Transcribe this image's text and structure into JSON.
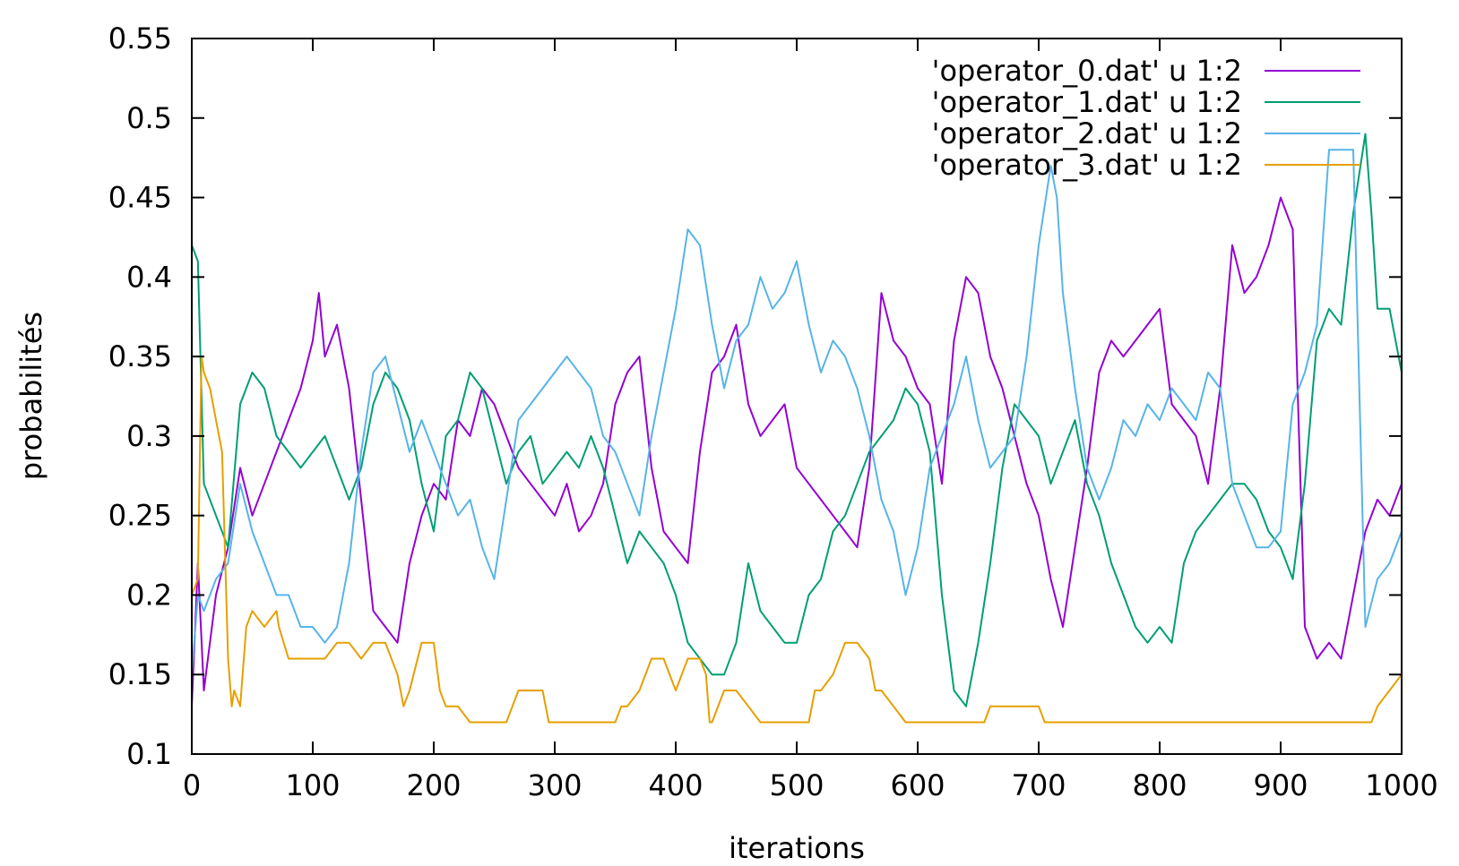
{
  "chart_data": {
    "type": "line",
    "title": "",
    "xlabel": "iterations",
    "ylabel": "probabilités",
    "xlim": [
      0,
      1000
    ],
    "ylim": [
      0.1,
      0.55
    ],
    "xticks": [
      "0",
      "100",
      "200",
      "300",
      "400",
      "500",
      "600",
      "700",
      "800",
      "900",
      "1000"
    ],
    "yticks": [
      "0.1",
      "0.15",
      "0.2",
      "0.25",
      "0.3",
      "0.35",
      "0.4",
      "0.45",
      "0.5",
      "0.55"
    ],
    "grid": false,
    "legend_position": "top-right",
    "series": [
      {
        "name": "'operator_0.dat' u 1:2",
        "color": "#9400d3",
        "x": [
          0,
          5,
          10,
          20,
          30,
          40,
          50,
          60,
          70,
          80,
          90,
          100,
          105,
          110,
          120,
          130,
          140,
          150,
          160,
          170,
          180,
          190,
          200,
          210,
          220,
          230,
          240,
          250,
          260,
          270,
          280,
          290,
          300,
          310,
          320,
          330,
          340,
          350,
          360,
          370,
          380,
          390,
          400,
          410,
          420,
          430,
          440,
          450,
          460,
          470,
          480,
          490,
          500,
          510,
          520,
          530,
          540,
          550,
          560,
          570,
          580,
          590,
          600,
          610,
          620,
          630,
          640,
          650,
          660,
          670,
          680,
          690,
          700,
          710,
          720,
          730,
          740,
          750,
          760,
          770,
          780,
          790,
          800,
          810,
          820,
          830,
          840,
          850,
          860,
          870,
          880,
          890,
          900,
          910,
          920,
          930,
          940,
          950,
          960,
          970,
          980,
          990,
          1000
        ],
        "y": [
          0.13,
          0.22,
          0.14,
          0.2,
          0.23,
          0.28,
          0.25,
          0.27,
          0.29,
          0.31,
          0.33,
          0.36,
          0.39,
          0.35,
          0.37,
          0.33,
          0.26,
          0.19,
          0.18,
          0.17,
          0.22,
          0.25,
          0.27,
          0.26,
          0.31,
          0.3,
          0.33,
          0.32,
          0.3,
          0.28,
          0.27,
          0.26,
          0.25,
          0.27,
          0.24,
          0.25,
          0.27,
          0.32,
          0.34,
          0.35,
          0.28,
          0.24,
          0.23,
          0.22,
          0.29,
          0.34,
          0.35,
          0.37,
          0.32,
          0.3,
          0.31,
          0.32,
          0.28,
          0.27,
          0.26,
          0.25,
          0.24,
          0.23,
          0.28,
          0.39,
          0.36,
          0.35,
          0.33,
          0.32,
          0.27,
          0.36,
          0.4,
          0.39,
          0.35,
          0.33,
          0.3,
          0.27,
          0.25,
          0.21,
          0.18,
          0.23,
          0.28,
          0.34,
          0.36,
          0.35,
          0.36,
          0.37,
          0.38,
          0.32,
          0.31,
          0.3,
          0.27,
          0.33,
          0.42,
          0.39,
          0.4,
          0.42,
          0.45,
          0.43,
          0.18,
          0.16,
          0.17,
          0.16,
          0.2,
          0.24,
          0.26,
          0.25,
          0.27
        ]
      },
      {
        "name": "'operator_1.dat' u 1:2",
        "color": "#009e73",
        "x": [
          0,
          5,
          10,
          20,
          30,
          40,
          50,
          60,
          70,
          80,
          90,
          100,
          110,
          120,
          130,
          140,
          150,
          160,
          170,
          180,
          190,
          200,
          210,
          220,
          230,
          240,
          250,
          260,
          270,
          280,
          290,
          300,
          310,
          320,
          330,
          340,
          350,
          360,
          370,
          380,
          390,
          400,
          410,
          420,
          430,
          440,
          450,
          460,
          470,
          480,
          490,
          500,
          510,
          520,
          530,
          540,
          550,
          560,
          570,
          580,
          590,
          600,
          610,
          620,
          630,
          640,
          650,
          660,
          670,
          680,
          690,
          700,
          710,
          720,
          730,
          740,
          750,
          760,
          770,
          780,
          790,
          800,
          810,
          820,
          830,
          840,
          850,
          860,
          870,
          880,
          890,
          900,
          910,
          920,
          930,
          940,
          950,
          960,
          970,
          975,
          980,
          990,
          1000
        ],
        "y": [
          0.42,
          0.41,
          0.27,
          0.25,
          0.23,
          0.32,
          0.34,
          0.33,
          0.3,
          0.29,
          0.28,
          0.29,
          0.3,
          0.28,
          0.26,
          0.28,
          0.32,
          0.34,
          0.33,
          0.31,
          0.27,
          0.24,
          0.3,
          0.31,
          0.34,
          0.33,
          0.3,
          0.27,
          0.29,
          0.3,
          0.27,
          0.28,
          0.29,
          0.28,
          0.3,
          0.28,
          0.25,
          0.22,
          0.24,
          0.23,
          0.22,
          0.2,
          0.17,
          0.16,
          0.15,
          0.15,
          0.17,
          0.22,
          0.19,
          0.18,
          0.17,
          0.17,
          0.2,
          0.21,
          0.24,
          0.25,
          0.27,
          0.29,
          0.3,
          0.31,
          0.33,
          0.32,
          0.29,
          0.2,
          0.14,
          0.13,
          0.17,
          0.22,
          0.28,
          0.32,
          0.31,
          0.3,
          0.27,
          0.29,
          0.31,
          0.27,
          0.25,
          0.22,
          0.2,
          0.18,
          0.17,
          0.18,
          0.17,
          0.22,
          0.24,
          0.25,
          0.26,
          0.27,
          0.27,
          0.26,
          0.24,
          0.23,
          0.21,
          0.27,
          0.36,
          0.38,
          0.37,
          0.44,
          0.49,
          0.44,
          0.38,
          0.38,
          0.34
        ]
      },
      {
        "name": "'operator_2.dat' u 1:2",
        "color": "#56b4e9",
        "x": [
          0,
          5,
          10,
          20,
          30,
          40,
          50,
          60,
          70,
          80,
          90,
          100,
          110,
          120,
          130,
          140,
          150,
          160,
          170,
          180,
          190,
          200,
          210,
          220,
          230,
          240,
          250,
          260,
          270,
          280,
          290,
          300,
          310,
          320,
          330,
          340,
          350,
          360,
          370,
          380,
          390,
          400,
          410,
          420,
          430,
          440,
          450,
          460,
          470,
          480,
          490,
          500,
          510,
          520,
          530,
          540,
          550,
          560,
          570,
          580,
          590,
          600,
          610,
          620,
          630,
          640,
          650,
          660,
          670,
          680,
          690,
          700,
          710,
          715,
          720,
          730,
          740,
          750,
          760,
          770,
          780,
          790,
          800,
          810,
          820,
          830,
          840,
          850,
          860,
          870,
          880,
          890,
          900,
          910,
          920,
          930,
          940,
          950,
          960,
          970,
          980,
          990,
          1000
        ],
        "y": [
          0.15,
          0.2,
          0.19,
          0.21,
          0.22,
          0.27,
          0.24,
          0.22,
          0.2,
          0.2,
          0.18,
          0.18,
          0.17,
          0.18,
          0.22,
          0.29,
          0.34,
          0.35,
          0.32,
          0.29,
          0.31,
          0.29,
          0.27,
          0.25,
          0.26,
          0.23,
          0.21,
          0.26,
          0.31,
          0.32,
          0.33,
          0.34,
          0.35,
          0.34,
          0.33,
          0.3,
          0.29,
          0.27,
          0.25,
          0.3,
          0.34,
          0.38,
          0.43,
          0.42,
          0.37,
          0.33,
          0.36,
          0.37,
          0.4,
          0.38,
          0.39,
          0.41,
          0.37,
          0.34,
          0.36,
          0.35,
          0.33,
          0.3,
          0.26,
          0.24,
          0.2,
          0.23,
          0.28,
          0.3,
          0.32,
          0.35,
          0.31,
          0.28,
          0.29,
          0.3,
          0.35,
          0.42,
          0.47,
          0.45,
          0.39,
          0.33,
          0.28,
          0.26,
          0.28,
          0.31,
          0.3,
          0.32,
          0.31,
          0.33,
          0.32,
          0.31,
          0.34,
          0.33,
          0.27,
          0.25,
          0.23,
          0.23,
          0.24,
          0.32,
          0.34,
          0.37,
          0.48,
          0.48,
          0.48,
          0.18,
          0.21,
          0.22,
          0.24
        ]
      },
      {
        "name": "'operator_3.dat' u 1:2",
        "color": "#e69f00",
        "x": [
          0,
          5,
          8,
          10,
          15,
          20,
          25,
          30,
          33,
          35,
          40,
          45,
          50,
          60,
          70,
          72,
          80,
          90,
          100,
          110,
          120,
          130,
          140,
          150,
          160,
          170,
          175,
          180,
          190,
          200,
          205,
          210,
          215,
          220,
          230,
          240,
          250,
          260,
          270,
          275,
          280,
          290,
          295,
          300,
          310,
          320,
          330,
          340,
          350,
          355,
          360,
          370,
          380,
          390,
          400,
          410,
          420,
          425,
          428,
          430,
          440,
          450,
          460,
          470,
          480,
          490,
          500,
          510,
          515,
          520,
          530,
          540,
          550,
          560,
          565,
          570,
          580,
          590,
          600,
          620,
          640,
          655,
          660,
          670,
          680,
          690,
          700,
          705,
          720,
          750,
          800,
          850,
          900,
          950,
          975,
          980,
          990,
          1000
        ],
        "y": [
          0.2,
          0.21,
          0.35,
          0.34,
          0.33,
          0.31,
          0.29,
          0.16,
          0.13,
          0.14,
          0.13,
          0.18,
          0.19,
          0.18,
          0.19,
          0.18,
          0.16,
          0.16,
          0.16,
          0.16,
          0.17,
          0.17,
          0.16,
          0.17,
          0.17,
          0.15,
          0.13,
          0.14,
          0.17,
          0.17,
          0.14,
          0.13,
          0.13,
          0.13,
          0.12,
          0.12,
          0.12,
          0.12,
          0.14,
          0.14,
          0.14,
          0.14,
          0.12,
          0.12,
          0.12,
          0.12,
          0.12,
          0.12,
          0.12,
          0.13,
          0.13,
          0.14,
          0.16,
          0.16,
          0.14,
          0.16,
          0.16,
          0.15,
          0.12,
          0.12,
          0.14,
          0.14,
          0.13,
          0.12,
          0.12,
          0.12,
          0.12,
          0.12,
          0.14,
          0.14,
          0.15,
          0.17,
          0.17,
          0.16,
          0.14,
          0.14,
          0.13,
          0.12,
          0.12,
          0.12,
          0.12,
          0.12,
          0.13,
          0.13,
          0.13,
          0.13,
          0.13,
          0.12,
          0.12,
          0.12,
          0.12,
          0.12,
          0.12,
          0.12,
          0.12,
          0.13,
          0.14,
          0.15
        ]
      }
    ]
  }
}
